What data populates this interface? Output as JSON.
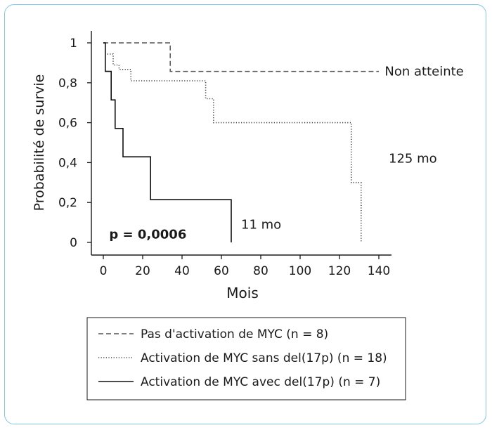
{
  "chart_data": {
    "type": "line",
    "step": true,
    "title": "",
    "xlabel": "Mois",
    "ylabel": "Probabilité de survie",
    "xlim": [
      0,
      140
    ],
    "ylim": [
      0,
      1
    ],
    "x_ticks": [
      0,
      20,
      40,
      60,
      80,
      100,
      120,
      140
    ],
    "y_ticks": [
      0,
      0.2,
      0.4,
      0.6,
      0.8,
      1
    ],
    "x_tick_labels": [
      "0",
      "20",
      "40",
      "60",
      "80",
      "100",
      "120",
      "140"
    ],
    "y_tick_labels": [
      "0",
      "0,2",
      "0,4",
      "0,6",
      "0,8",
      "1"
    ],
    "grid": false,
    "legend_position": "bottom",
    "series": [
      {
        "name": "Pas d'activation de MYC (n = 8)",
        "style": "dashed",
        "color": "#555555",
        "points": [
          [
            0,
            1
          ],
          [
            34,
            1
          ],
          [
            34,
            0.857
          ],
          [
            140,
            0.857
          ]
        ]
      },
      {
        "name": "Activation de MYC sans del(17p) (n = 18)",
        "style": "dotted",
        "color": "#444444",
        "points": [
          [
            0,
            1
          ],
          [
            1,
            1
          ],
          [
            1,
            0.944
          ],
          [
            5,
            0.944
          ],
          [
            5,
            0.889
          ],
          [
            8,
            0.889
          ],
          [
            8,
            0.867
          ],
          [
            14,
            0.867
          ],
          [
            14,
            0.81
          ],
          [
            52,
            0.81
          ],
          [
            52,
            0.72
          ],
          [
            56,
            0.72
          ],
          [
            56,
            0.6
          ],
          [
            126,
            0.6
          ],
          [
            126,
            0.3
          ],
          [
            131,
            0.3
          ],
          [
            131,
            0
          ]
        ]
      },
      {
        "name": "Activation de MYC avec del(17p) (n = 7)",
        "style": "solid",
        "color": "#111111",
        "points": [
          [
            0,
            1
          ],
          [
            1,
            1
          ],
          [
            1,
            0.857
          ],
          [
            4,
            0.857
          ],
          [
            4,
            0.714
          ],
          [
            6,
            0.714
          ],
          [
            6,
            0.571
          ],
          [
            10,
            0.571
          ],
          [
            10,
            0.429
          ],
          [
            24,
            0.429
          ],
          [
            24,
            0.214
          ],
          [
            65,
            0.214
          ],
          [
            65,
            0
          ]
        ]
      }
    ],
    "annotations": [
      {
        "text": "Non atteinte",
        "x": 143,
        "y": 0.857
      },
      {
        "text": "125 mo",
        "x": 145,
        "y": 0.42
      },
      {
        "text": "11 mo",
        "x": 70,
        "y": 0.09
      },
      {
        "text": "p = 0,0006",
        "x": 3,
        "y": 0.04,
        "bold": true
      }
    ]
  }
}
